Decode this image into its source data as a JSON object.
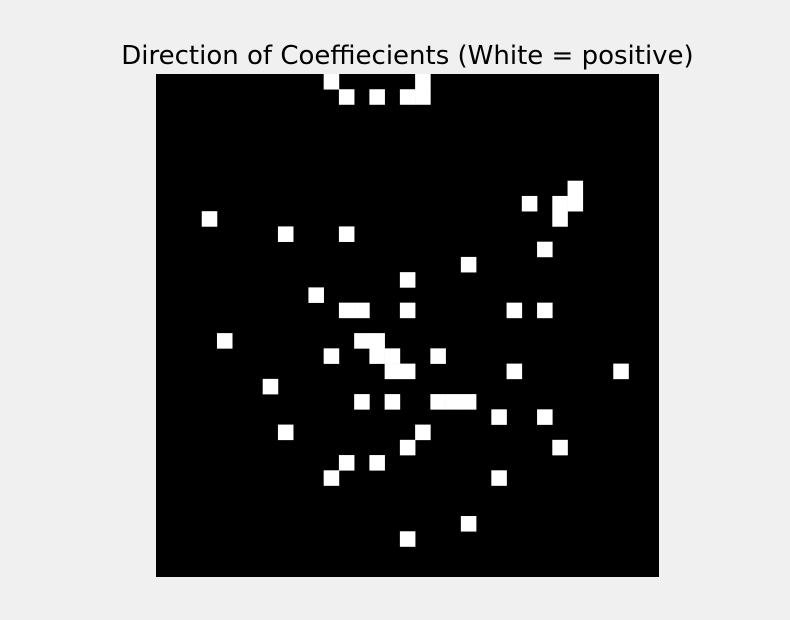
{
  "chart_data": {
    "type": "heatmap",
    "title": "Direction of Coeffiecients (White = positive)",
    "grid": false,
    "axes_visible": false,
    "rows": 33,
    "cols": 33,
    "colors": {
      "positive": "#ffffff",
      "negative": "#000000",
      "figure_background": "#f0f0f0"
    },
    "positive_cells": [
      [
        0,
        11
      ],
      [
        0,
        17
      ],
      [
        1,
        12
      ],
      [
        1,
        14
      ],
      [
        1,
        16
      ],
      [
        1,
        17
      ],
      [
        7,
        27
      ],
      [
        8,
        24
      ],
      [
        8,
        26
      ],
      [
        8,
        27
      ],
      [
        9,
        3
      ],
      [
        9,
        26
      ],
      [
        10,
        8
      ],
      [
        10,
        12
      ],
      [
        11,
        25
      ],
      [
        12,
        20
      ],
      [
        13,
        16
      ],
      [
        14,
        10
      ],
      [
        15,
        12
      ],
      [
        15,
        13
      ],
      [
        15,
        16
      ],
      [
        15,
        23
      ],
      [
        15,
        25
      ],
      [
        17,
        4
      ],
      [
        17,
        13
      ],
      [
        17,
        14
      ],
      [
        18,
        11
      ],
      [
        18,
        14
      ],
      [
        18,
        15
      ],
      [
        18,
        18
      ],
      [
        19,
        15
      ],
      [
        19,
        16
      ],
      [
        19,
        23
      ],
      [
        19,
        30
      ],
      [
        20,
        7
      ],
      [
        21,
        13
      ],
      [
        21,
        15
      ],
      [
        21,
        18
      ],
      [
        21,
        19
      ],
      [
        21,
        20
      ],
      [
        22,
        22
      ],
      [
        22,
        25
      ],
      [
        23,
        8
      ],
      [
        23,
        17
      ],
      [
        24,
        16
      ],
      [
        24,
        26
      ],
      [
        25,
        12
      ],
      [
        25,
        14
      ],
      [
        26,
        11
      ],
      [
        26,
        22
      ],
      [
        29,
        20
      ],
      [
        30,
        16
      ]
    ]
  }
}
